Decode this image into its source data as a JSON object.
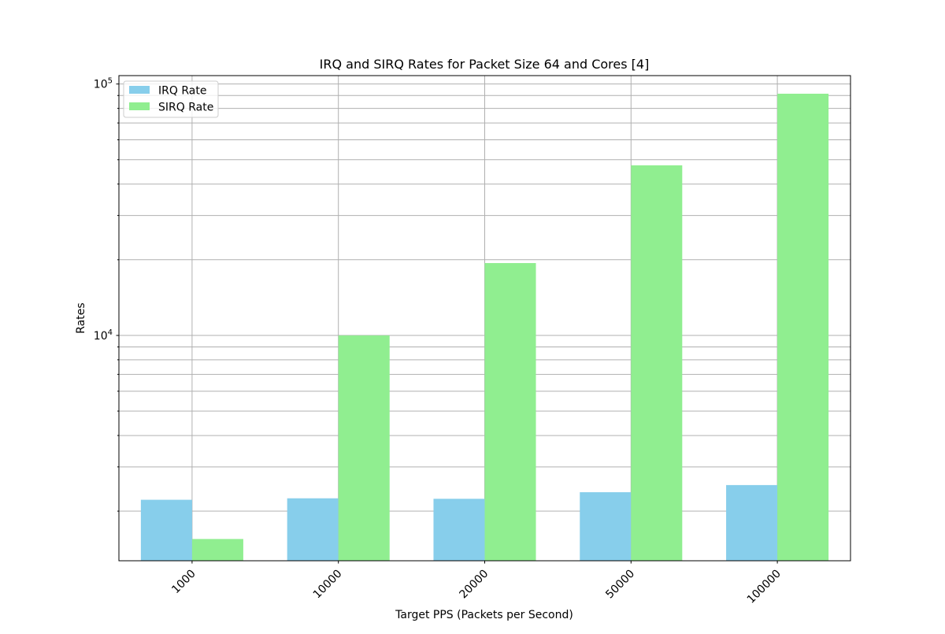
{
  "chart_data": {
    "type": "bar",
    "title": "IRQ and SIRQ Rates for Packet Size 64 and Cores [4]",
    "xlabel": "Target PPS (Packets per Second)",
    "ylabel": "Rates",
    "yscale": "log",
    "ylim": [
      1270,
      108000
    ],
    "categories": [
      "1000",
      "10000",
      "20000",
      "50000",
      "100000"
    ],
    "series": [
      {
        "name": "IRQ Rate",
        "color": "#87ceeb",
        "values": [
          2220,
          2250,
          2240,
          2380,
          2540
        ]
      },
      {
        "name": "SIRQ Rate",
        "color": "#90ee90",
        "values": [
          1550,
          10000,
          19400,
          47500,
          91500
        ]
      }
    ],
    "y_major_ticks": [
      {
        "value": 10000,
        "base": "10",
        "exp": "4"
      },
      {
        "value": 100000,
        "base": "10",
        "exp": "5"
      }
    ],
    "grid": true,
    "legend_position": "upper-left",
    "x_tick_rotation": 45
  }
}
